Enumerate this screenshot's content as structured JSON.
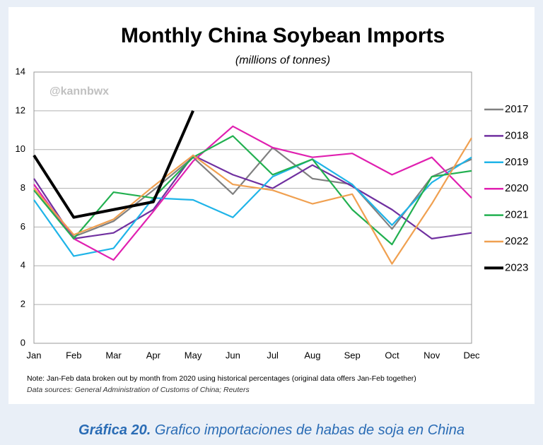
{
  "chart_data": {
    "type": "line",
    "title": "Monthly China Soybean Imports",
    "subtitle": "(millions of tonnes)",
    "watermark": "@kannbwx",
    "categories": [
      "Jan",
      "Feb",
      "Mar",
      "Apr",
      "May",
      "Jun",
      "Jul",
      "Aug",
      "Sep",
      "Oct",
      "Nov",
      "Dec"
    ],
    "series": [
      {
        "name": "2017",
        "color": "#808080",
        "values": [
          8.0,
          5.5,
          6.3,
          7.9,
          9.6,
          7.7,
          10.1,
          8.5,
          8.2,
          5.9,
          8.6,
          9.5
        ]
      },
      {
        "name": "2018",
        "color": "#7030a0",
        "values": [
          8.5,
          5.4,
          5.7,
          6.9,
          9.7,
          8.7,
          8.0,
          9.2,
          8.1,
          6.9,
          5.4,
          5.7
        ]
      },
      {
        "name": "2019",
        "color": "#1fb4e8",
        "values": [
          7.4,
          4.5,
          4.9,
          7.5,
          7.4,
          6.5,
          8.6,
          9.5,
          8.2,
          6.1,
          8.3,
          9.6
        ]
      },
      {
        "name": "2020",
        "color": "#e020b0",
        "values": [
          8.2,
          5.4,
          4.3,
          6.8,
          9.4,
          11.2,
          10.1,
          9.6,
          9.8,
          8.7,
          9.6,
          7.5
        ]
      },
      {
        "name": "2021",
        "color": "#22b050",
        "values": [
          7.9,
          5.4,
          7.8,
          7.5,
          9.6,
          10.7,
          8.7,
          9.5,
          6.9,
          5.1,
          8.6,
          8.9
        ]
      },
      {
        "name": "2022",
        "color": "#f0a050",
        "values": [
          8.0,
          5.6,
          6.4,
          8.1,
          9.7,
          8.2,
          7.9,
          7.2,
          7.7,
          4.1,
          7.2,
          10.6
        ]
      },
      {
        "name": "2023",
        "color": "#000000",
        "values": [
          9.7,
          6.5,
          6.9,
          7.3,
          12.0,
          null,
          null,
          null,
          null,
          null,
          null,
          null
        ]
      }
    ],
    "ylim": [
      0,
      14
    ],
    "yticks": [
      0,
      2,
      4,
      6,
      8,
      10,
      12,
      14
    ],
    "grid": true,
    "note": "Note: Jan-Feb data broken out by month from 2020 using historical percentages (original data offers Jan-Feb together)",
    "source": "Data sources: General Administration of Customs of China; Reuters"
  },
  "caption": {
    "label": "Gráfica 20.",
    "text": "Grafico importaciones de habas de soja en China"
  }
}
